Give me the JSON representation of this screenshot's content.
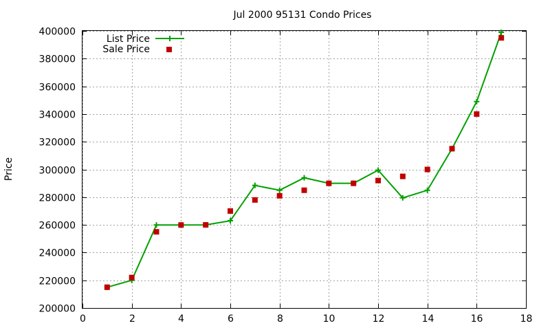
{
  "chart_data": {
    "type": "line",
    "title": "Jul 2000 95131 Condo Prices",
    "xlabel": "",
    "ylabel": "Price",
    "xlim": [
      0,
      18
    ],
    "ylim": [
      200000,
      400000
    ],
    "x_ticks": [
      "0",
      "2",
      "4",
      "6",
      "8",
      "10",
      "12",
      "14",
      "16",
      "18"
    ],
    "y_ticks": [
      "200000",
      "220000",
      "240000",
      "260000",
      "280000",
      "300000",
      "320000",
      "340000",
      "360000",
      "380000",
      "400000"
    ],
    "grid": true,
    "legend_position": "top-left",
    "series": [
      {
        "name": "List Price",
        "style": "line-with-plus-markers",
        "color": "#00a000",
        "x": [
          1,
          2,
          3,
          4,
          5,
          6,
          7,
          8,
          9,
          10,
          11,
          12,
          13,
          14,
          15,
          16,
          17
        ],
        "values": [
          215000,
          220000,
          259900,
          259900,
          260000,
          263000,
          288500,
          285000,
          294000,
          290000,
          290000,
          299500,
          279500,
          285000,
          315000,
          349000,
          399000
        ]
      },
      {
        "name": "Sale Price",
        "style": "square-markers",
        "color": "#c00000",
        "x": [
          1,
          2,
          3,
          4,
          5,
          6,
          7,
          8,
          9,
          10,
          11,
          12,
          13,
          14,
          15,
          16,
          17
        ],
        "values": [
          215000,
          222000,
          255000,
          259900,
          260000,
          270000,
          278000,
          281000,
          285000,
          290000,
          290000,
          292000,
          295000,
          300000,
          315000,
          340000,
          395000
        ]
      }
    ]
  }
}
